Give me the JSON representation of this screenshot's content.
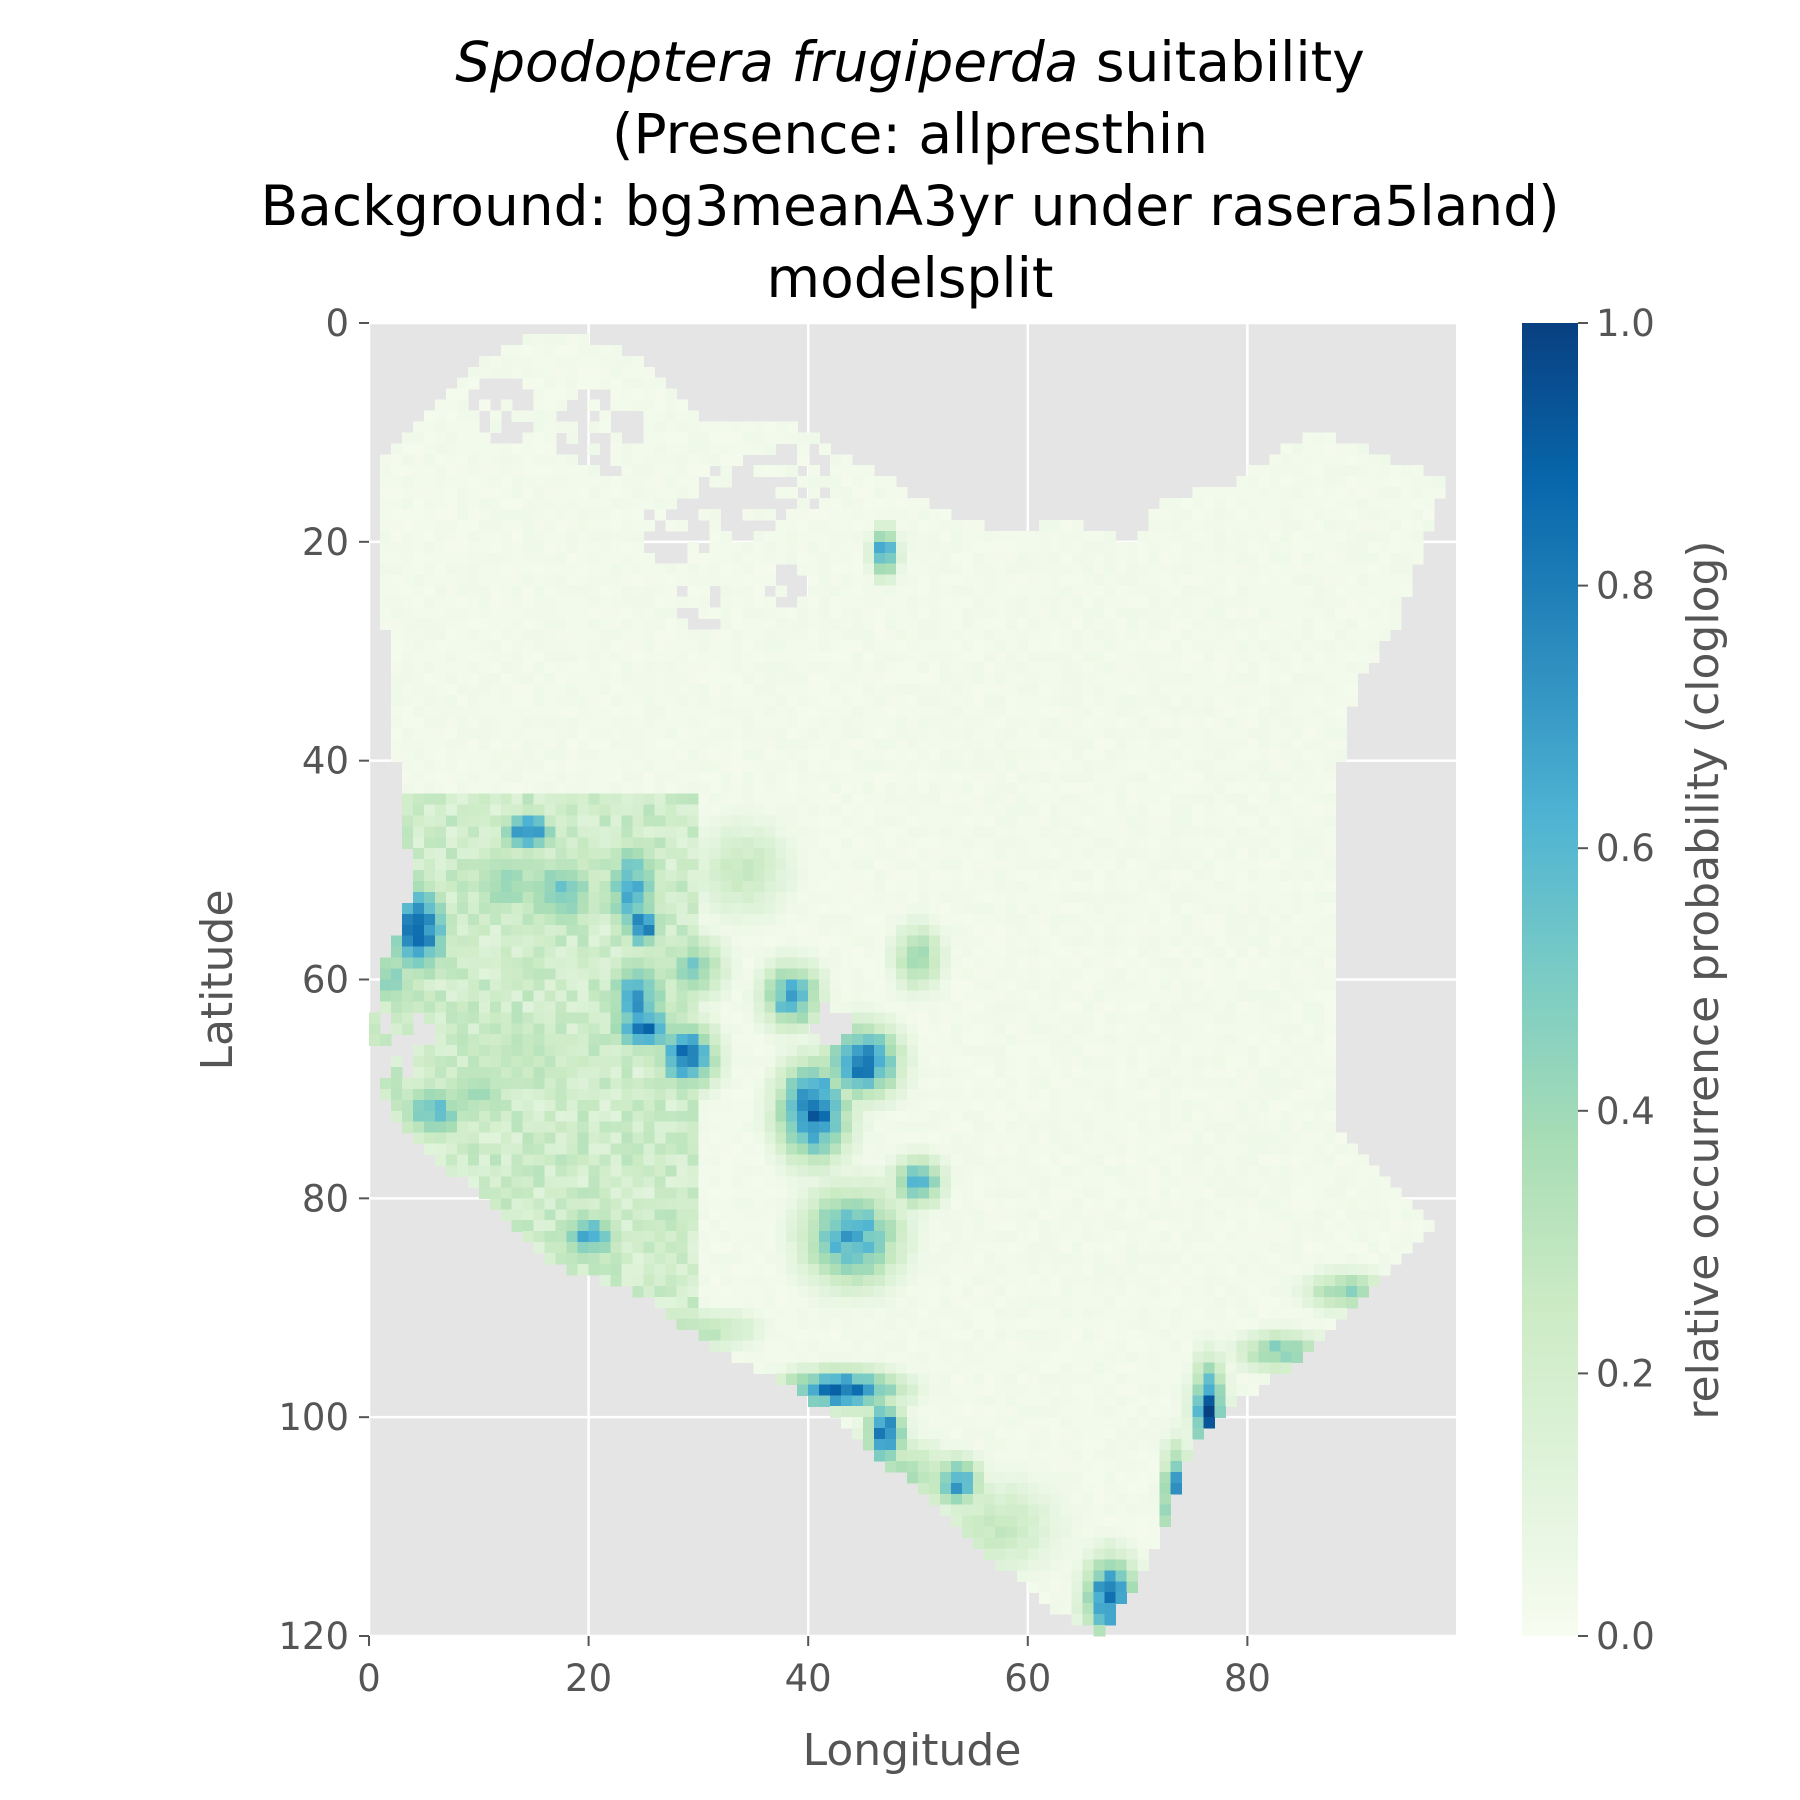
{
  "chart_data": {
    "type": "heatmap",
    "title": {
      "species": "Spodoptera frugiperda",
      "line1_suffix": " suitability",
      "line2": "(Presence: allpresthin",
      "line3": "Background: bg3meanA3yr under rasera5land)",
      "line4": "modelsplit"
    },
    "xlabel": "Longitude",
    "ylabel": "Latitude",
    "xlim": [
      0,
      99
    ],
    "ylim": [
      120,
      0
    ],
    "x_ticks": [
      0,
      20,
      40,
      60,
      80
    ],
    "y_ticks": [
      0,
      20,
      40,
      60,
      80,
      100,
      120
    ],
    "grid": true,
    "colorbar": {
      "label": "relative occurrence probability (cloglog)",
      "range": [
        0,
        1
      ],
      "ticks": [
        "0.0",
        "0.2",
        "0.4",
        "0.6",
        "0.8",
        "1.0"
      ],
      "colormap": "GnBu",
      "colors": [
        "#f7fcf0",
        "#e0f3db",
        "#ccebc5",
        "#a8ddb5",
        "#7bccc4",
        "#4eb3d3",
        "#2b8cbe",
        "#0868ac",
        "#084081"
      ]
    },
    "land_outline_lonlat": [
      [
        2,
        11
      ],
      [
        6,
        8
      ],
      [
        9,
        4
      ],
      [
        15,
        1
      ],
      [
        18,
        1
      ],
      [
        25,
        3
      ],
      [
        28,
        6
      ],
      [
        31,
        9
      ],
      [
        38,
        9
      ],
      [
        45,
        13
      ],
      [
        52,
        17
      ],
      [
        58,
        19
      ],
      [
        64,
        18
      ],
      [
        70,
        20
      ],
      [
        72,
        16
      ],
      [
        78,
        15
      ],
      [
        84,
        11
      ],
      [
        87,
        10
      ],
      [
        92,
        12
      ],
      [
        98,
        14
      ],
      [
        94,
        27
      ],
      [
        90,
        33
      ],
      [
        88,
        42
      ],
      [
        88,
        54
      ],
      [
        88,
        66
      ],
      [
        88,
        74
      ],
      [
        92,
        77
      ],
      [
        97,
        83
      ],
      [
        92,
        88
      ],
      [
        86,
        94
      ],
      [
        80,
        98
      ],
      [
        75,
        103
      ],
      [
        73,
        109
      ],
      [
        70,
        115
      ],
      [
        67,
        120
      ],
      [
        63,
        118
      ],
      [
        58,
        114
      ],
      [
        54,
        110
      ],
      [
        48,
        105
      ],
      [
        43,
        100
      ],
      [
        38,
        97
      ],
      [
        32,
        94
      ],
      [
        25,
        89
      ],
      [
        17,
        86
      ],
      [
        12,
        81
      ],
      [
        8,
        78
      ],
      [
        5,
        76
      ],
      [
        2,
        72
      ],
      [
        0,
        67
      ],
      [
        1,
        60
      ],
      [
        2,
        57
      ],
      [
        4,
        52
      ],
      [
        3,
        44
      ],
      [
        2,
        35
      ],
      [
        1,
        20
      ],
      [
        1,
        14
      ]
    ],
    "hotspots": [
      {
        "lon": 4.5,
        "lat": 55.5,
        "value": 0.98,
        "sx": 2.0,
        "sy": 3.0
      },
      {
        "lon": 2.0,
        "lat": 60.0,
        "value": 0.55,
        "sx": 1.8,
        "sy": 2.0
      },
      {
        "lon": 14.5,
        "lat": 46.5,
        "value": 0.85,
        "sx": 1.8,
        "sy": 1.4
      },
      {
        "lon": 12.5,
        "lat": 51.0,
        "value": 0.5,
        "sx": 3.0,
        "sy": 2.5
      },
      {
        "lon": 17.5,
        "lat": 52.0,
        "value": 0.6,
        "sx": 2.5,
        "sy": 2.5
      },
      {
        "lon": 24.0,
        "lat": 52.0,
        "value": 0.7,
        "sx": 1.8,
        "sy": 3.5
      },
      {
        "lon": 25.0,
        "lat": 55.0,
        "value": 0.95,
        "sx": 1.2,
        "sy": 1.5
      },
      {
        "lon": 24.5,
        "lat": 62.0,
        "value": 0.75,
        "sx": 2.0,
        "sy": 3.0
      },
      {
        "lon": 25.0,
        "lat": 64.5,
        "value": 0.95,
        "sx": 2.0,
        "sy": 1.5
      },
      {
        "lon": 29.0,
        "lat": 67.0,
        "value": 0.95,
        "sx": 1.8,
        "sy": 2.0
      },
      {
        "lon": 29.5,
        "lat": 59.0,
        "value": 0.55,
        "sx": 2.0,
        "sy": 2.0
      },
      {
        "lon": 40.5,
        "lat": 72.0,
        "value": 1.0,
        "sx": 2.2,
        "sy": 3.0
      },
      {
        "lon": 45.0,
        "lat": 67.5,
        "value": 0.95,
        "sx": 2.2,
        "sy": 2.2
      },
      {
        "lon": 38.5,
        "lat": 61.5,
        "value": 0.75,
        "sx": 1.8,
        "sy": 2.0
      },
      {
        "lon": 44.0,
        "lat": 83.5,
        "value": 0.75,
        "sx": 3.0,
        "sy": 3.0
      },
      {
        "lon": 50.0,
        "lat": 58.0,
        "value": 0.5,
        "sx": 1.5,
        "sy": 2.0
      },
      {
        "lon": 50.0,
        "lat": 78.5,
        "value": 0.75,
        "sx": 1.5,
        "sy": 1.5
      },
      {
        "lon": 47.0,
        "lat": 21.0,
        "value": 0.85,
        "sx": 0.8,
        "sy": 1.5
      },
      {
        "lon": 20.0,
        "lat": 83.5,
        "value": 0.7,
        "sx": 2.0,
        "sy": 1.8
      },
      {
        "lon": 6.0,
        "lat": 72.0,
        "value": 0.6,
        "sx": 2.5,
        "sy": 2.0
      },
      {
        "lon": 10.0,
        "lat": 70.0,
        "value": 0.45,
        "sx": 2.5,
        "sy": 2.5
      },
      {
        "lon": 43.0,
        "lat": 97.5,
        "value": 1.0,
        "sx": 3.5,
        "sy": 1.2
      },
      {
        "lon": 47.0,
        "lat": 101.5,
        "value": 0.95,
        "sx": 1.2,
        "sy": 2.0
      },
      {
        "lon": 53.5,
        "lat": 106.0,
        "value": 0.8,
        "sx": 1.5,
        "sy": 1.5
      },
      {
        "lon": 49.0,
        "lat": 105.0,
        "value": 0.45,
        "sx": 2.5,
        "sy": 1.8
      },
      {
        "lon": 76.5,
        "lat": 99.5,
        "value": 1.0,
        "sx": 1.0,
        "sy": 3.0
      },
      {
        "lon": 73.5,
        "lat": 107.5,
        "value": 1.0,
        "sx": 0.8,
        "sy": 3.0
      },
      {
        "lon": 67.5,
        "lat": 116.5,
        "value": 0.95,
        "sx": 1.6,
        "sy": 2.5
      },
      {
        "lon": 83.0,
        "lat": 94.0,
        "value": 0.55,
        "sx": 2.5,
        "sy": 1.2
      },
      {
        "lon": 89.0,
        "lat": 88.5,
        "value": 0.5,
        "sx": 2.5,
        "sy": 1.2
      },
      {
        "lon": 14.0,
        "lat": 66.5,
        "value": 0.35,
        "sx": 4.0,
        "sy": 3.0
      },
      {
        "lon": 34.0,
        "lat": 50.0,
        "value": 0.3,
        "sx": 3.0,
        "sy": 3.0
      },
      {
        "lon": 57.0,
        "lat": 110.0,
        "value": 0.3,
        "sx": 4.0,
        "sy": 3.0
      },
      {
        "lon": 31.0,
        "lat": 92.0,
        "value": 0.35,
        "sx": 3.0,
        "sy": 1.2
      }
    ],
    "nodata_patches": [
      {
        "lon": 21,
        "lat": 10,
        "r": 4
      },
      {
        "lon": 12,
        "lat": 8,
        "r": 3
      },
      {
        "lon": 34,
        "lat": 16,
        "r": 4
      },
      {
        "lon": 39,
        "lat": 14,
        "r": 3
      },
      {
        "lon": 28,
        "lat": 19,
        "r": 3
      },
      {
        "lon": 30,
        "lat": 26,
        "r": 2.5
      },
      {
        "lon": 38,
        "lat": 24,
        "r": 2
      },
      {
        "lon": 3,
        "lat": 66,
        "r": 3
      },
      {
        "lon": 42,
        "lat": 64,
        "r": 2
      }
    ]
  }
}
